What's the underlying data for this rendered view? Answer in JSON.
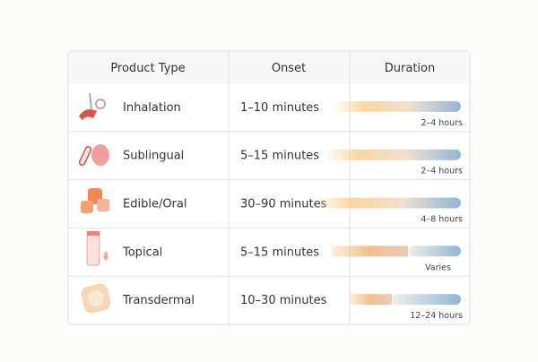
{
  "table": {
    "header": [
      "Product Type",
      "Onset",
      "Duration"
    ],
    "rows": [
      [
        "Inhalation",
        "1–10 minutes",
        "2–4 hours"
      ],
      [
        "Sublingual",
        "5–15 minutes",
        "2–4 hours"
      ],
      [
        "Edible/Oral",
        "30–90 minutes",
        "4–8 hours"
      ],
      [
        "Topical",
        "5–15 minutes",
        "Varies"
      ],
      [
        "Transdermal",
        "10–30 minutes",
        "12–24 hours"
      ]
    ]
  }
}
